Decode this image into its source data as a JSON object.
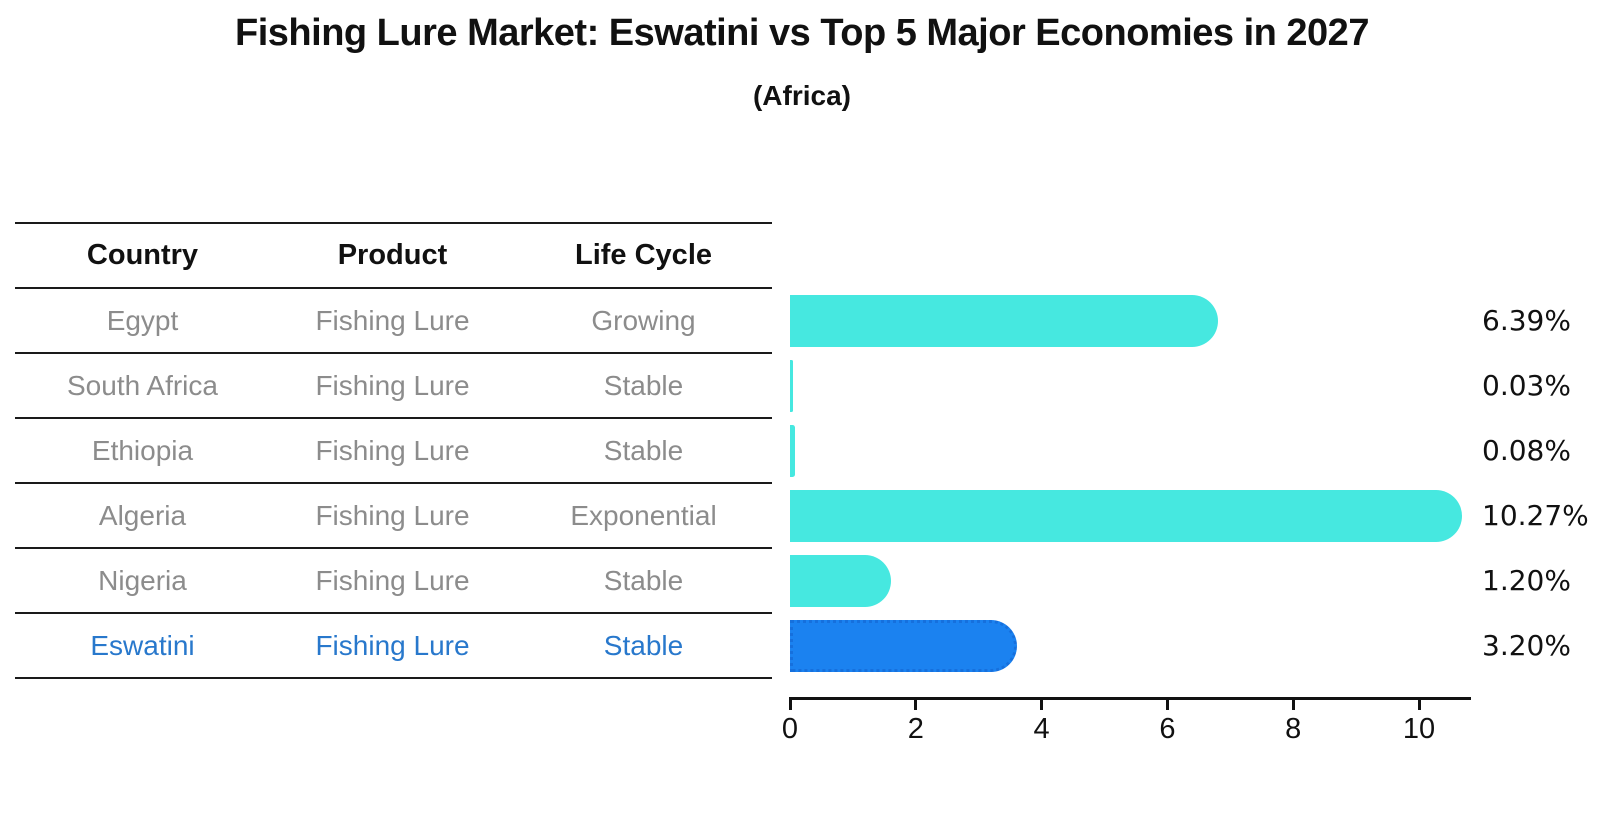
{
  "header": {
    "title": "Fishing Lure Market: Eswatini vs Top 5 Major Economies in 2027",
    "subtitle": "(Africa)"
  },
  "table": {
    "headers": [
      "Country",
      "Product",
      "Life Cycle"
    ],
    "rows": [
      {
        "country": "Egypt",
        "product": "Fishing Lure",
        "life_cycle": "Growing",
        "highlight": false
      },
      {
        "country": "South Africa",
        "product": "Fishing Lure",
        "life_cycle": "Stable",
        "highlight": false
      },
      {
        "country": "Ethiopia",
        "product": "Fishing Lure",
        "life_cycle": "Stable",
        "highlight": false
      },
      {
        "country": "Algeria",
        "product": "Fishing Lure",
        "life_cycle": "Exponential",
        "highlight": false
      },
      {
        "country": "Nigeria",
        "product": "Fishing Lure",
        "life_cycle": "Stable",
        "highlight": false
      },
      {
        "country": "Eswatini",
        "product": "Fishing Lure",
        "life_cycle": "Stable",
        "highlight": true
      }
    ]
  },
  "chart_data": {
    "type": "bar",
    "orientation": "horizontal",
    "title": "Fishing Lure Market: Eswatini vs Top 5 Major Economies in 2027",
    "subtitle": "(Africa)",
    "categories": [
      "Egypt",
      "South Africa",
      "Ethiopia",
      "Algeria",
      "Nigeria",
      "Eswatini"
    ],
    "values": [
      6.39,
      0.03,
      0.08,
      10.27,
      1.2,
      3.2
    ],
    "value_labels": [
      "6.39%",
      "0.03%",
      "0.08%",
      "10.27%",
      "1.20%",
      "3.20%"
    ],
    "x_ticks": [
      0,
      2,
      4,
      6,
      8,
      10
    ],
    "xlim": [
      0,
      10.8
    ],
    "grid": false,
    "legend": false,
    "bar_color": "#46E8E0",
    "highlight_color": "#1B82F0",
    "highlight_border_color": "#1670DD",
    "highlight_index": 5,
    "highlight_text_color": "#2878cc"
  }
}
